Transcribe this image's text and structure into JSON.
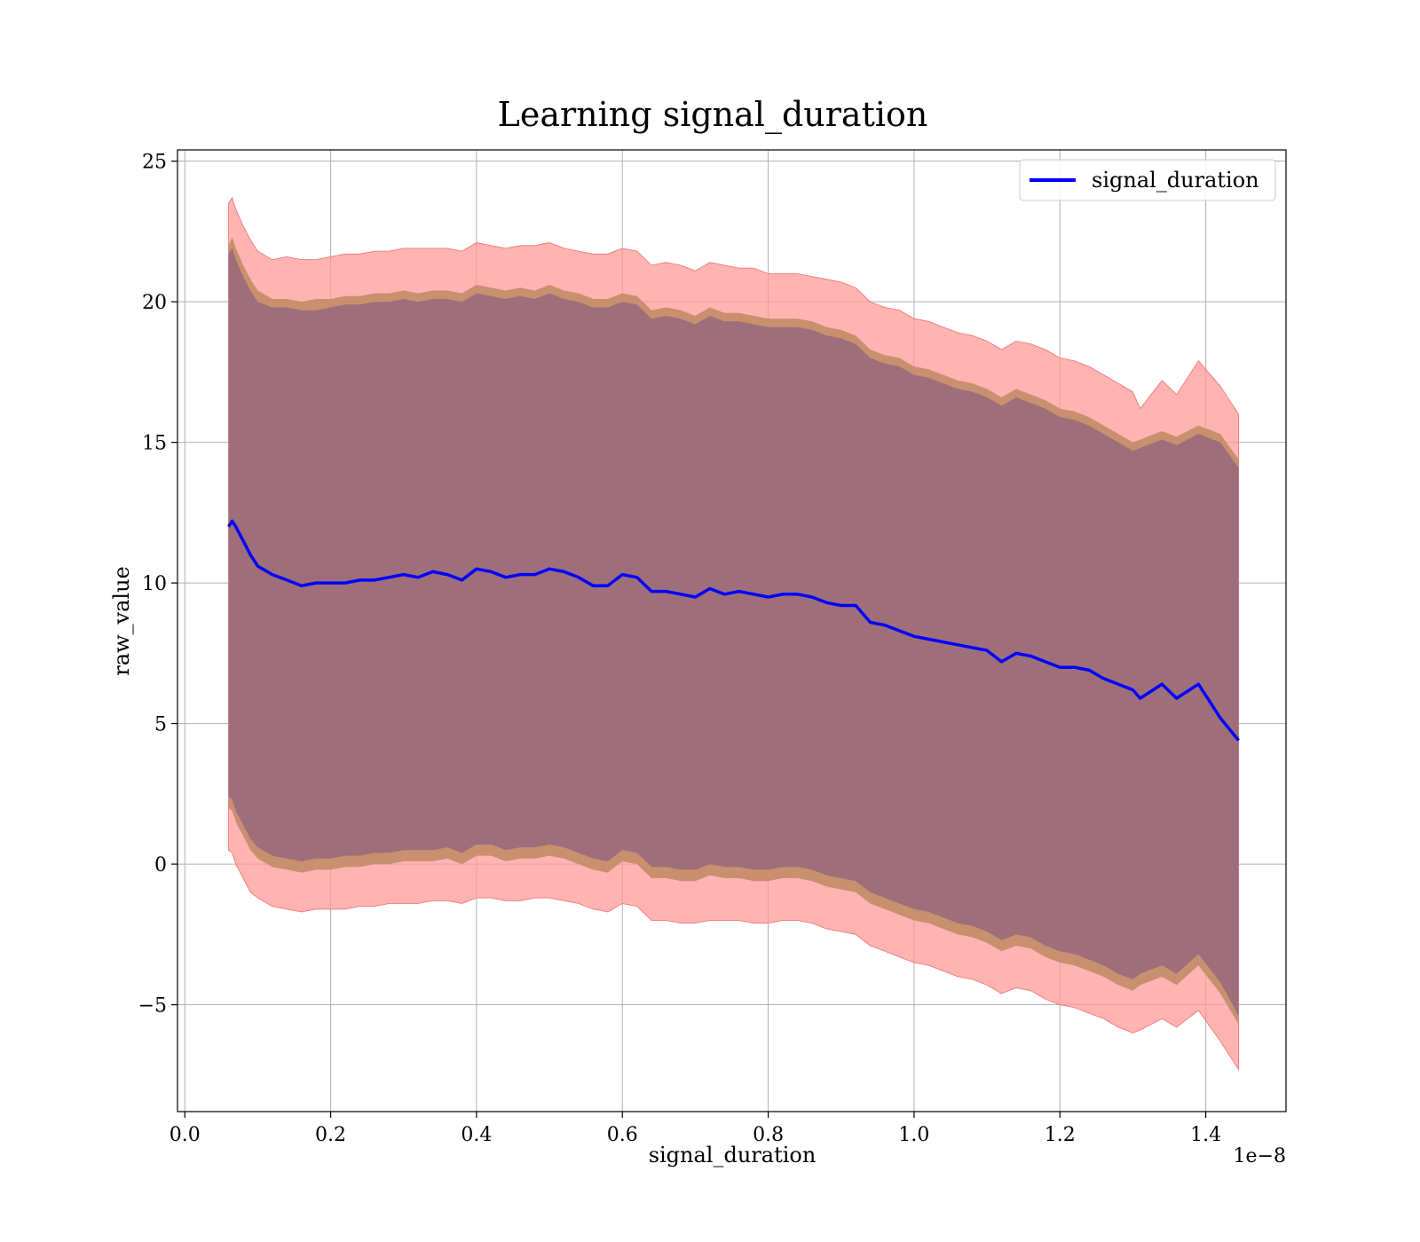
{
  "chart_data": {
    "type": "line",
    "title": "Learning signal_duration",
    "xlabel": "signal_duration",
    "ylabel": "raw_value",
    "x_offset_label": "1e−8",
    "xlim": [
      -0.01,
      1.51
    ],
    "ylim": [
      -8.8,
      25.4
    ],
    "x_ticks": [
      0.0,
      0.2,
      0.4,
      0.6,
      0.8,
      1.0,
      1.2,
      1.4
    ],
    "x_tick_labels": [
      "0.0",
      "0.2",
      "0.4",
      "0.6",
      "0.8",
      "1.0",
      "1.2",
      "1.4"
    ],
    "y_ticks": [
      -5,
      0,
      5,
      10,
      15,
      20,
      25
    ],
    "y_tick_labels": [
      "−5",
      "0",
      "5",
      "10",
      "15",
      "20",
      "25"
    ],
    "grid": true,
    "legend": {
      "position": "top-right",
      "entries": [
        "signal_duration"
      ]
    },
    "colors": {
      "line": "#0000ff",
      "band_outer": "#ff9999",
      "band_middle": "#c8906e",
      "band_inner": "#9e6f7a",
      "grid": "#b0b0b0"
    },
    "series": [
      {
        "name": "signal_duration",
        "x": [
          0.06,
          0.065,
          0.07,
          0.08,
          0.09,
          0.1,
          0.12,
          0.14,
          0.16,
          0.18,
          0.2,
          0.22,
          0.24,
          0.26,
          0.28,
          0.3,
          0.32,
          0.34,
          0.36,
          0.38,
          0.4,
          0.42,
          0.44,
          0.46,
          0.48,
          0.5,
          0.52,
          0.54,
          0.56,
          0.58,
          0.6,
          0.62,
          0.64,
          0.66,
          0.68,
          0.7,
          0.72,
          0.74,
          0.76,
          0.78,
          0.8,
          0.82,
          0.84,
          0.86,
          0.88,
          0.9,
          0.92,
          0.94,
          0.96,
          0.98,
          1.0,
          1.02,
          1.04,
          1.06,
          1.08,
          1.1,
          1.12,
          1.14,
          1.16,
          1.18,
          1.2,
          1.22,
          1.24,
          1.26,
          1.28,
          1.3,
          1.31,
          1.34,
          1.36,
          1.39,
          1.42,
          1.445
        ],
        "values": [
          12.0,
          12.2,
          12.0,
          11.5,
          11.0,
          10.6,
          10.3,
          10.1,
          9.9,
          10.0,
          10.0,
          10.0,
          10.1,
          10.1,
          10.2,
          10.3,
          10.2,
          10.4,
          10.3,
          10.1,
          10.5,
          10.4,
          10.2,
          10.3,
          10.3,
          10.5,
          10.4,
          10.2,
          9.9,
          9.9,
          10.3,
          10.2,
          9.7,
          9.7,
          9.6,
          9.5,
          9.8,
          9.6,
          9.7,
          9.6,
          9.5,
          9.6,
          9.6,
          9.5,
          9.3,
          9.2,
          9.2,
          8.6,
          8.5,
          8.3,
          8.1,
          8.0,
          7.9,
          7.8,
          7.7,
          7.6,
          7.2,
          7.5,
          7.4,
          7.2,
          7.0,
          7.0,
          6.9,
          6.6,
          6.4,
          6.2,
          5.9,
          6.4,
          5.9,
          6.4,
          5.2,
          4.4
        ],
        "band_outer_upper": [
          23.5,
          23.7,
          23.3,
          22.7,
          22.2,
          21.8,
          21.5,
          21.6,
          21.5,
          21.5,
          21.6,
          21.7,
          21.7,
          21.8,
          21.8,
          21.9,
          21.9,
          21.9,
          21.9,
          21.8,
          22.1,
          22.0,
          21.9,
          22.0,
          22.0,
          22.1,
          21.9,
          21.8,
          21.7,
          21.7,
          21.9,
          21.8,
          21.3,
          21.4,
          21.3,
          21.1,
          21.4,
          21.3,
          21.2,
          21.2,
          21.0,
          21.0,
          21.0,
          20.9,
          20.8,
          20.7,
          20.5,
          20.0,
          19.8,
          19.7,
          19.4,
          19.3,
          19.1,
          18.9,
          18.8,
          18.6,
          18.3,
          18.6,
          18.5,
          18.3,
          18.0,
          17.9,
          17.7,
          17.4,
          17.1,
          16.8,
          16.2,
          17.2,
          16.7,
          17.9,
          17.0,
          16.0
        ],
        "band_outer_lower": [
          0.5,
          0.4,
          0.0,
          -0.5,
          -1.0,
          -1.2,
          -1.5,
          -1.6,
          -1.7,
          -1.6,
          -1.6,
          -1.6,
          -1.5,
          -1.5,
          -1.4,
          -1.4,
          -1.4,
          -1.3,
          -1.3,
          -1.4,
          -1.2,
          -1.2,
          -1.3,
          -1.3,
          -1.2,
          -1.2,
          -1.3,
          -1.4,
          -1.6,
          -1.7,
          -1.4,
          -1.5,
          -2.0,
          -2.0,
          -2.1,
          -2.1,
          -2.0,
          -2.0,
          -2.0,
          -2.1,
          -2.1,
          -2.0,
          -2.0,
          -2.1,
          -2.3,
          -2.4,
          -2.5,
          -2.9,
          -3.1,
          -3.3,
          -3.5,
          -3.6,
          -3.8,
          -4.0,
          -4.1,
          -4.3,
          -4.6,
          -4.4,
          -4.5,
          -4.8,
          -5.0,
          -5.1,
          -5.3,
          -5.5,
          -5.8,
          -6.0,
          -5.9,
          -5.5,
          -5.8,
          -5.2,
          -6.3,
          -7.3
        ],
        "band_middle_upper": [
          22.0,
          22.3,
          21.9,
          21.3,
          20.8,
          20.4,
          20.1,
          20.1,
          20.0,
          20.1,
          20.1,
          20.2,
          20.2,
          20.3,
          20.3,
          20.4,
          20.3,
          20.4,
          20.4,
          20.3,
          20.6,
          20.5,
          20.4,
          20.5,
          20.4,
          20.6,
          20.4,
          20.3,
          20.1,
          20.1,
          20.3,
          20.2,
          19.7,
          19.8,
          19.7,
          19.5,
          19.8,
          19.6,
          19.6,
          19.5,
          19.4,
          19.4,
          19.4,
          19.3,
          19.1,
          19.0,
          18.8,
          18.3,
          18.1,
          18.0,
          17.7,
          17.6,
          17.4,
          17.2,
          17.1,
          16.9,
          16.6,
          16.9,
          16.7,
          16.5,
          16.2,
          16.1,
          15.9,
          15.6,
          15.3,
          15.0,
          15.1,
          15.4,
          15.2,
          15.6,
          15.3,
          14.4
        ],
        "band_middle_lower": [
          2.0,
          1.9,
          1.5,
          1.0,
          0.5,
          0.2,
          -0.1,
          -0.2,
          -0.3,
          -0.2,
          -0.2,
          -0.1,
          -0.1,
          0.0,
          0.0,
          0.1,
          0.1,
          0.1,
          0.2,
          0.0,
          0.3,
          0.3,
          0.1,
          0.2,
          0.2,
          0.3,
          0.2,
          0.0,
          -0.2,
          -0.3,
          0.1,
          0.0,
          -0.5,
          -0.5,
          -0.6,
          -0.6,
          -0.4,
          -0.5,
          -0.5,
          -0.6,
          -0.6,
          -0.5,
          -0.5,
          -0.6,
          -0.8,
          -0.9,
          -1.0,
          -1.4,
          -1.6,
          -1.8,
          -2.0,
          -2.1,
          -2.3,
          -2.5,
          -2.6,
          -2.8,
          -3.1,
          -2.9,
          -3.0,
          -3.3,
          -3.5,
          -3.6,
          -3.8,
          -4.0,
          -4.3,
          -4.5,
          -4.3,
          -4.0,
          -4.3,
          -3.6,
          -4.6,
          -5.7
        ],
        "band_inner_upper": [
          21.7,
          21.9,
          21.5,
          20.9,
          20.4,
          20.0,
          19.8,
          19.8,
          19.7,
          19.7,
          19.8,
          19.9,
          19.9,
          20.0,
          20.0,
          20.1,
          20.0,
          20.1,
          20.1,
          20.0,
          20.3,
          20.2,
          20.1,
          20.2,
          20.1,
          20.3,
          20.1,
          20.0,
          19.8,
          19.8,
          20.0,
          19.9,
          19.4,
          19.5,
          19.4,
          19.2,
          19.5,
          19.3,
          19.3,
          19.2,
          19.1,
          19.1,
          19.1,
          19.0,
          18.8,
          18.7,
          18.5,
          18.0,
          17.8,
          17.7,
          17.4,
          17.3,
          17.1,
          16.9,
          16.8,
          16.6,
          16.3,
          16.6,
          16.4,
          16.2,
          15.9,
          15.8,
          15.6,
          15.3,
          15.0,
          14.7,
          14.8,
          15.1,
          14.9,
          15.3,
          15.0,
          14.1
        ],
        "band_inner_lower": [
          2.4,
          2.3,
          1.9,
          1.4,
          0.9,
          0.6,
          0.3,
          0.2,
          0.1,
          0.2,
          0.2,
          0.3,
          0.3,
          0.4,
          0.4,
          0.5,
          0.5,
          0.5,
          0.6,
          0.4,
          0.7,
          0.7,
          0.5,
          0.6,
          0.6,
          0.7,
          0.6,
          0.4,
          0.2,
          0.1,
          0.5,
          0.4,
          -0.1,
          -0.1,
          -0.2,
          -0.2,
          0.0,
          -0.1,
          -0.1,
          -0.2,
          -0.2,
          -0.1,
          -0.1,
          -0.2,
          -0.4,
          -0.5,
          -0.6,
          -1.0,
          -1.2,
          -1.4,
          -1.6,
          -1.7,
          -1.9,
          -2.1,
          -2.2,
          -2.4,
          -2.7,
          -2.5,
          -2.6,
          -2.9,
          -3.1,
          -3.2,
          -3.4,
          -3.6,
          -3.9,
          -4.1,
          -3.9,
          -3.6,
          -3.9,
          -3.2,
          -4.2,
          -5.4
        ]
      }
    ]
  }
}
